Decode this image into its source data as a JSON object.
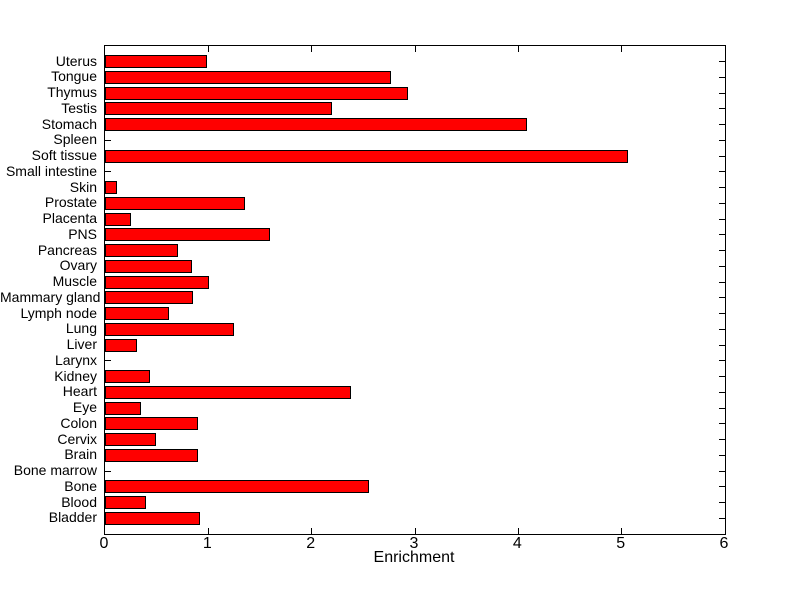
{
  "chart_data": {
    "type": "bar",
    "orientation": "horizontal",
    "title": "",
    "xlabel": "Enrichment",
    "ylabel": "",
    "xlim": [
      0,
      6
    ],
    "xticks": [
      0,
      1,
      2,
      3,
      4,
      5,
      6
    ],
    "grid": false,
    "legend": null,
    "background_color": "#ffffff",
    "bar_color": "#ff0000",
    "bar_edge_color": "#000000",
    "axis_color": "#000000",
    "categories": [
      "Uterus",
      "Tongue",
      "Thymus",
      "Testis",
      "Stomach",
      "Spleen",
      "Soft tissue",
      "Small intestine",
      "Skin",
      "Prostate",
      "Placenta",
      "PNS",
      "Pancreas",
      "Ovary",
      "Muscle",
      "Mammary gland",
      "Lymph node",
      "Lung",
      "Liver",
      "Larynx",
      "Kidney",
      "Heart",
      "Eye",
      "Colon",
      "Cervix",
      "Brain",
      "Bone marrow",
      "Bone",
      "Blood",
      "Bladder"
    ],
    "values": [
      0.99,
      2.77,
      2.93,
      2.2,
      4.08,
      0,
      5.06,
      0,
      0.12,
      1.35,
      0.25,
      1.6,
      0.71,
      0.84,
      1.01,
      0.85,
      0.62,
      1.25,
      0.31,
      0,
      0.44,
      2.38,
      0.35,
      0.9,
      0.49,
      0.9,
      0,
      2.55,
      0.4,
      0.92
    ]
  }
}
